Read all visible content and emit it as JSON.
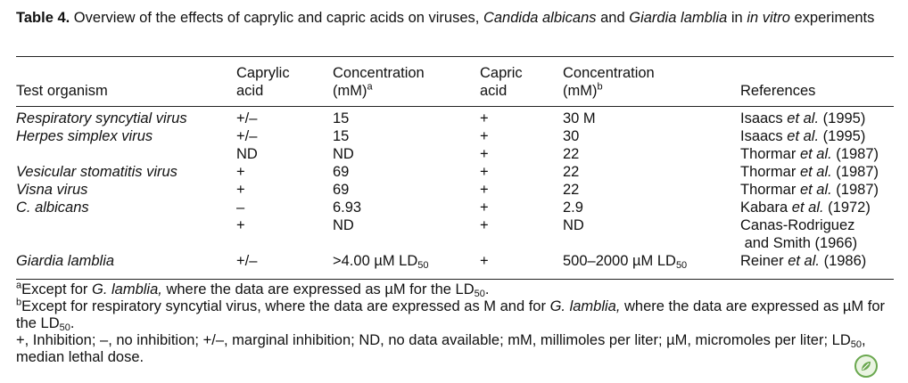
{
  "caption": {
    "label": "Table 4.",
    "text_before": " Overview of the effects of caprylic and capric acids on viruses, ",
    "organism1": "Candida albicans",
    "text_mid": " and ",
    "organism2": "Giardia lamblia",
    "text_in": " in ",
    "in_vitro": "in vitro",
    "text_after": " experiments"
  },
  "headers": {
    "test_organism": "Test organism",
    "caprylic_line1": "Caprylic",
    "caprylic_line2": "acid",
    "conc1_line1": "Concentration",
    "conc1_line2": "(mM)",
    "conc1_sup": "a",
    "capric_line1": "Capric",
    "capric_line2": "acid",
    "conc2_line1": "Concentration",
    "conc2_line2": "(mM)",
    "conc2_sup": "b",
    "references": "References"
  },
  "rows": [
    {
      "organism": "Respiratory syncytial virus",
      "caprylic": "+/–",
      "conc1": "15",
      "capric": "+",
      "conc2": "30 M",
      "ref_author": "Isaacs ",
      "ref_etal": "et al.",
      "ref_year": " (1995)"
    },
    {
      "organism": "Herpes simplex virus",
      "caprylic": "+/–",
      "conc1": "15",
      "capric": "+",
      "conc2": "30",
      "ref_author": "Isaacs ",
      "ref_etal": "et al.",
      "ref_year": " (1995)"
    },
    {
      "organism": "",
      "caprylic": "ND",
      "conc1": "ND",
      "capric": "+",
      "conc2": "22",
      "ref_author": "Thormar ",
      "ref_etal": "et al.",
      "ref_year": " (1987)"
    },
    {
      "organism": "Vesicular stomatitis virus",
      "caprylic": "+",
      "conc1": "69",
      "capric": "+",
      "conc2": "22",
      "ref_author": "Thormar ",
      "ref_etal": "et al.",
      "ref_year": " (1987)"
    },
    {
      "organism": "Visna virus",
      "caprylic": "+",
      "conc1": "69",
      "capric": "+",
      "conc2": "22",
      "ref_author": "Thormar ",
      "ref_etal": "et al.",
      "ref_year": " (1987)"
    },
    {
      "organism": "C. albicans",
      "caprylic": "–",
      "conc1": "6.93",
      "capric": "+",
      "conc2": "2.9",
      "ref_author": "Kabara ",
      "ref_etal": "et al.",
      "ref_year": " (1972)"
    },
    {
      "organism": "",
      "caprylic": "+",
      "conc1": "ND",
      "capric": "+",
      "conc2": "ND",
      "ref_line1": "Canas-Rodriguez",
      "ref_line2": " and Smith (1966)"
    },
    {
      "organism": "Giardia lamblia",
      "caprylic": "+/–",
      "conc1": ">4.00 µM LD",
      "conc1_sub": "50",
      "capric": "+",
      "conc2": "500–2000 µM LD",
      "conc2_sub": "50",
      "ref_author": "Reiner ",
      "ref_etal": "et al.",
      "ref_year": " (1986)"
    }
  ],
  "footnotes": {
    "a_mark": "a",
    "a_text": "Except for ",
    "a_org": "G. lamblia,",
    "a_text2": " where the data are expressed as µM for the LD",
    "a_sub": "50",
    "a_end": ".",
    "b_mark": "b",
    "b_text": "Except for respiratory syncytial virus, where the data are expressed as M and for ",
    "b_org": "G. lamblia,",
    "b_text2": " where the data are expressed as µM for the LD",
    "b_sub": "50",
    "b_end": ".",
    "legend_text": "+, Inhibition; –, no inhibition; +/–, marginal inhibition; ND, no data available; mM, millimoles per liter; µM, micromoles per liter; LD",
    "legend_sub": "50",
    "legend_end": ", median lethal dose."
  },
  "logo_icon": "publisher-logo-icon"
}
